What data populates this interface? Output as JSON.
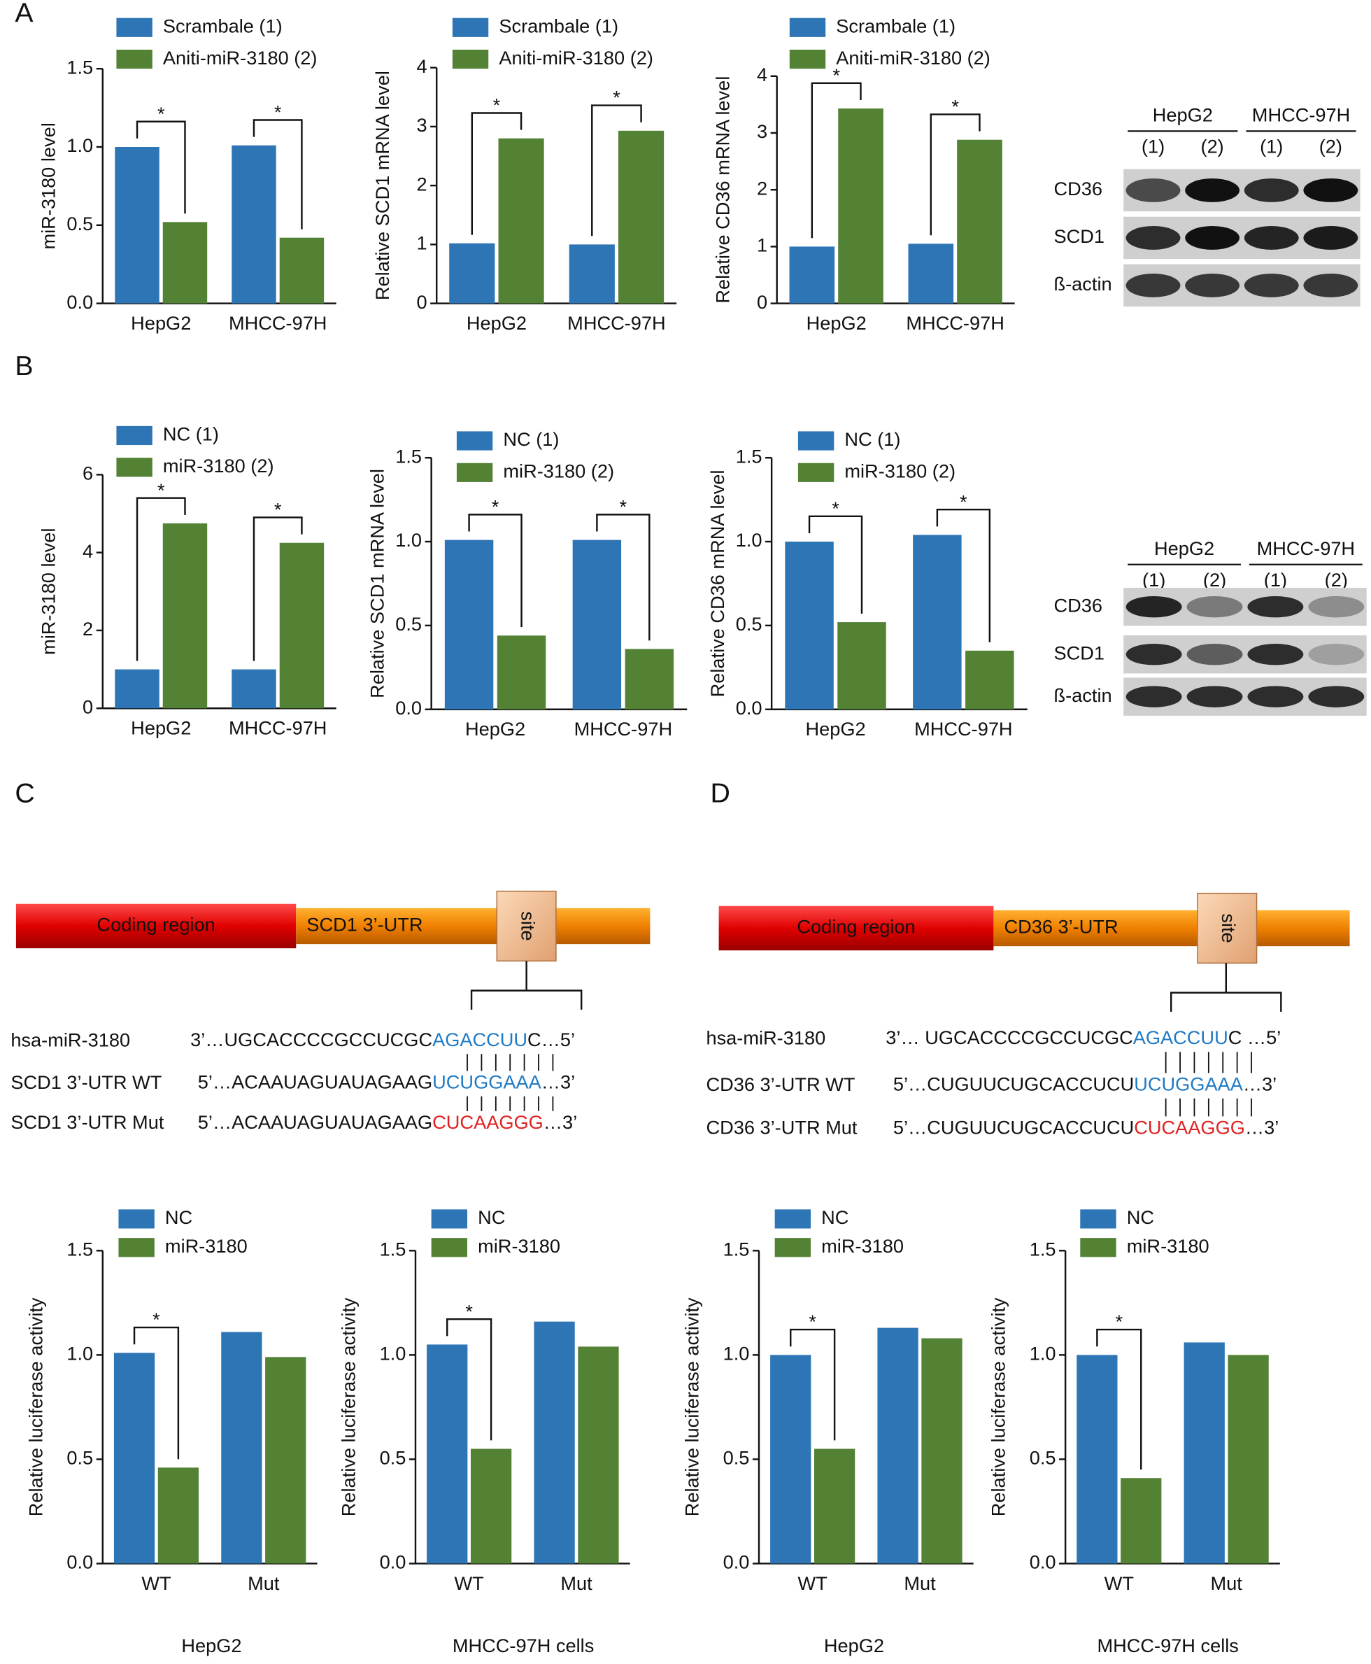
{
  "panels": [
    "A",
    "B",
    "C",
    "D"
  ],
  "chart_data": [
    {
      "type": "bar",
      "ylabel": "miR-3180 level",
      "categories": [
        "HepG2",
        "MHCC-97H"
      ],
      "ylim": [
        0,
        1.5
      ],
      "yticks": [
        {
          "value": 0,
          "label": "0.0"
        },
        0.5,
        {
          "value": 1,
          "label": "1.0"
        },
        1.5
      ],
      "series": [
        {
          "name": "Scrambale (1)",
          "color": "#2e75b6",
          "values": [
            1.0,
            1.01
          ]
        },
        {
          "name": "Aniti-miR-3180 (2)",
          "color": "#548235",
          "values": [
            0.52,
            0.42
          ]
        }
      ],
      "significance": [
        "*",
        "*"
      ]
    },
    {
      "type": "bar",
      "ylabel": "Relative SCD1 mRNA level",
      "categories": [
        "HepG2",
        "MHCC-97H"
      ],
      "ylim": [
        0,
        4
      ],
      "yticks": [
        0,
        1,
        2,
        3,
        4
      ],
      "series": [
        {
          "name": "Scrambale (1)",
          "color": "#2e75b6",
          "values": [
            1.02,
            1.0
          ]
        },
        {
          "name": "Aniti-miR-3180 (2)",
          "color": "#548235",
          "values": [
            2.8,
            2.93
          ]
        }
      ],
      "significance": [
        "*",
        "*"
      ]
    },
    {
      "type": "bar",
      "ylabel": "Relative CD36 mRNA level",
      "categories": [
        "HepG2",
        "MHCC-97H"
      ],
      "ylim": [
        0,
        4
      ],
      "yticks": [
        0,
        1,
        2,
        3,
        4
      ],
      "series": [
        {
          "name": "Scrambale (1)",
          "color": "#2e75b6",
          "values": [
            1.0,
            1.05
          ]
        },
        {
          "name": "Aniti-miR-3180 (2)",
          "color": "#548235",
          "values": [
            3.43,
            2.88
          ]
        }
      ],
      "significance": [
        "*",
        "*"
      ]
    },
    {
      "type": "bar",
      "ylabel": "miR-3180 level",
      "categories": [
        "HepG2",
        "MHCC-97H"
      ],
      "ylim": [
        0,
        6
      ],
      "yticks": [
        0,
        2,
        4,
        6
      ],
      "series": [
        {
          "name": "NC (1)",
          "color": "#2e75b6",
          "values": [
            1.0,
            1.0
          ]
        },
        {
          "name": "miR-3180 (2)",
          "color": "#548235",
          "values": [
            4.75,
            4.25
          ]
        }
      ],
      "significance": [
        "*",
        "*"
      ]
    },
    {
      "type": "bar",
      "ylabel": "Relative SCD1 mRNA level",
      "categories": [
        "HepG2",
        "MHCC-97H"
      ],
      "ylim": [
        0,
        1.5
      ],
      "yticks": [
        {
          "value": 0,
          "label": "0.0"
        },
        0.5,
        {
          "value": 1,
          "label": "1.0"
        },
        1.5
      ],
      "series": [
        {
          "name": "NC (1)",
          "color": "#2e75b6",
          "values": [
            1.01,
            1.01
          ]
        },
        {
          "name": "miR-3180 (2)",
          "color": "#548235",
          "values": [
            0.44,
            0.36
          ]
        }
      ],
      "significance": [
        "*",
        "*"
      ]
    },
    {
      "type": "bar",
      "ylabel": "Relative CD36 mRNA level",
      "categories": [
        "HepG2",
        "MHCC-97H"
      ],
      "ylim": [
        0,
        1.5
      ],
      "yticks": [
        {
          "value": 0,
          "label": "0.0"
        },
        0.5,
        {
          "value": 1,
          "label": "1.0"
        },
        1.5
      ],
      "series": [
        {
          "name": "NC (1)",
          "color": "#2e75b6",
          "values": [
            1.0,
            1.04
          ]
        },
        {
          "name": "miR-3180 (2)",
          "color": "#548235",
          "values": [
            0.52,
            0.35
          ]
        }
      ],
      "significance": [
        "*",
        "*"
      ]
    },
    {
      "type": "bar",
      "ylabel": "Relative luciferase  activity",
      "xlabel": "HepG2",
      "categories": [
        "WT",
        "Mut"
      ],
      "ylim": [
        0,
        1.5
      ],
      "yticks": [
        {
          "value": 0,
          "label": "0.0"
        },
        0.5,
        {
          "value": 1,
          "label": "1.0"
        },
        1.5
      ],
      "series": [
        {
          "name": "NC",
          "color": "#2e75b6",
          "values": [
            1.01,
            1.11
          ]
        },
        {
          "name": "miR-3180",
          "color": "#548235",
          "values": [
            0.46,
            0.99
          ]
        }
      ],
      "significance": [
        "*",
        null
      ]
    },
    {
      "type": "bar",
      "ylabel": "Relative luciferase  activity",
      "xlabel": "MHCC-97H  cells",
      "categories": [
        "WT",
        "Mut"
      ],
      "ylim": [
        0,
        1.5
      ],
      "yticks": [
        {
          "value": 0,
          "label": "0.0"
        },
        0.5,
        {
          "value": 1,
          "label": "1.0"
        },
        1.5
      ],
      "series": [
        {
          "name": "NC",
          "color": "#2e75b6",
          "values": [
            1.05,
            1.16
          ]
        },
        {
          "name": "miR-3180",
          "color": "#548235",
          "values": [
            0.55,
            1.04
          ]
        }
      ],
      "significance": [
        "*",
        null
      ]
    },
    {
      "type": "bar",
      "ylabel": "Relative luciferase  activity",
      "xlabel": "HepG2",
      "categories": [
        "WT",
        "Mut"
      ],
      "ylim": [
        0,
        1.5
      ],
      "yticks": [
        {
          "value": 0,
          "label": "0.0"
        },
        0.5,
        {
          "value": 1,
          "label": "1.0"
        },
        1.5
      ],
      "series": [
        {
          "name": "NC",
          "color": "#2e75b6",
          "values": [
            1.0,
            1.13
          ]
        },
        {
          "name": "miR-3180",
          "color": "#548235",
          "values": [
            0.55,
            1.08
          ]
        }
      ],
      "significance": [
        "*",
        null
      ]
    },
    {
      "type": "bar",
      "ylabel": "Relative luciferase  activity",
      "xlabel": "MHCC-97H  cells",
      "categories": [
        "WT",
        "Mut"
      ],
      "ylim": [
        0,
        1.5
      ],
      "yticks": [
        {
          "value": 0,
          "label": "0.0"
        },
        0.5,
        {
          "value": 1,
          "label": "1.0"
        },
        1.5
      ],
      "series": [
        {
          "name": "NC",
          "color": "#2e75b6",
          "values": [
            1.0,
            1.06
          ]
        },
        {
          "name": "miR-3180",
          "color": "#548235",
          "values": [
            0.41,
            1.0
          ]
        }
      ],
      "significance": [
        "*",
        null
      ]
    }
  ],
  "blots": [
    {
      "cell_lines": [
        "HepG2",
        "MHCC-97H"
      ],
      "lanes": [
        "(1)",
        "(2)",
        "(1)",
        "(2)"
      ],
      "rows": [
        "CD36",
        "SCD1",
        "ß-actin"
      ]
    },
    {
      "cell_lines": [
        "HepG2",
        "MHCC-97H"
      ],
      "lanes": [
        "(1)",
        "(2)",
        "(1)",
        "(2)"
      ],
      "rows": [
        "CD36",
        "SCD1",
        "ß-actin"
      ]
    }
  ],
  "diagrams": [
    {
      "coding": "Coding region",
      "utr": "SCD1 3’-UTR",
      "site": "site",
      "rows": [
        {
          "label": "hsa-miR-3180",
          "seq": [
            "3’…UGCACCCCGCCUCGC",
            "AGACCUU",
            "C…5’"
          ]
        },
        {
          "label": "SCD1 3’-UTR WT",
          "seq": [
            "5’…ACAAUAGUAUAGAAG",
            "UCUGGAAA",
            "…3’"
          ]
        },
        {
          "label": "SCD1 3’-UTR Mut",
          "seq": [
            "5’…ACAAUAGUAUAGAAG",
            "CUCAAGGG",
            "…3’"
          ]
        }
      ]
    },
    {
      "coding": "Coding region",
      "utr": "CD36 3’-UTR",
      "site": "site",
      "rows": [
        {
          "label": "hsa-miR-3180",
          "seq": [
            "3’… UGCACCCCGCCUCGC",
            "AGACCUU",
            "C …5’"
          ]
        },
        {
          "label": "CD36 3’-UTR WT",
          "seq": [
            "5’…CUGUUCUGCACCUCU",
            "UCUGGAAA",
            "…3’"
          ]
        },
        {
          "label": "CD36 3’-UTR Mut",
          "seq": [
            "5’…CUGUUCUGCACCUCU",
            "CUCAAGGG",
            "…3’"
          ]
        }
      ]
    }
  ]
}
